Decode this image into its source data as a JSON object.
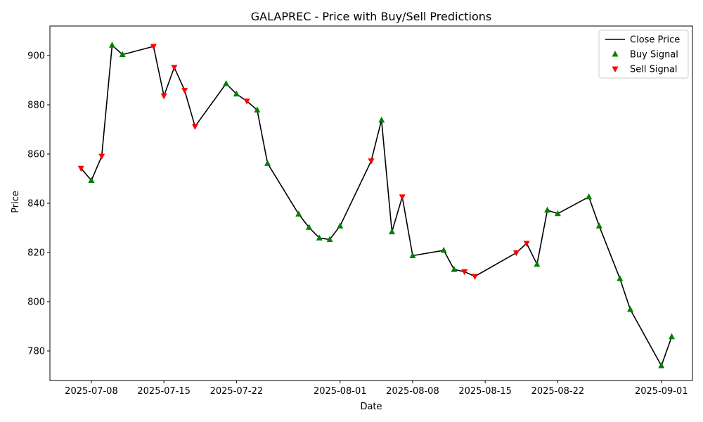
{
  "chart_data": {
    "type": "line",
    "title": "GALAPREC - Price with Buy/Sell Predictions",
    "xlabel": "Date",
    "ylabel": "Price",
    "x_ticks": [
      "2025-07-08",
      "2025-07-15",
      "2025-07-22",
      "2025-08-01",
      "2025-08-08",
      "2025-08-15",
      "2025-08-22",
      "2025-09-01"
    ],
    "y_ticks": [
      780,
      800,
      820,
      840,
      860,
      880,
      900
    ],
    "xlim": [
      "2025-07-04",
      "2025-09-04"
    ],
    "ylim": [
      768,
      912
    ],
    "grid": false,
    "legend_position": "top-right",
    "legend": [
      "Close Price",
      "Buy Signal",
      "Sell Signal"
    ],
    "colors": {
      "line": "#000000",
      "buy": "#008000",
      "sell": "#ff0000"
    },
    "series": [
      {
        "name": "Close Price",
        "points": [
          {
            "x": "2025-07-07",
            "y": 854.2,
            "signal": "sell"
          },
          {
            "x": "2025-07-08",
            "y": 849.3,
            "signal": "buy"
          },
          {
            "x": "2025-07-09",
            "y": 859.1,
            "signal": "sell"
          },
          {
            "x": "2025-07-10",
            "y": 904.2,
            "signal": "buy"
          },
          {
            "x": "2025-07-11",
            "y": 900.4,
            "signal": "buy"
          },
          {
            "x": "2025-07-14",
            "y": 903.7,
            "signal": "sell"
          },
          {
            "x": "2025-07-15",
            "y": 883.6,
            "signal": "sell"
          },
          {
            "x": "2025-07-16",
            "y": 895.2,
            "signal": "sell"
          },
          {
            "x": "2025-07-17",
            "y": 885.9,
            "signal": "sell"
          },
          {
            "x": "2025-07-18",
            "y": 871.2,
            "signal": "sell"
          },
          {
            "x": "2025-07-21",
            "y": 888.6,
            "signal": "buy"
          },
          {
            "x": "2025-07-22",
            "y": 884.4,
            "signal": "buy"
          },
          {
            "x": "2025-07-23",
            "y": 881.5,
            "signal": "sell"
          },
          {
            "x": "2025-07-24",
            "y": 877.9,
            "signal": "buy"
          },
          {
            "x": "2025-07-25",
            "y": 856.2,
            "signal": "buy"
          },
          {
            "x": "2025-07-28",
            "y": 835.6,
            "signal": "buy"
          },
          {
            "x": "2025-07-29",
            "y": 830.2,
            "signal": "buy"
          },
          {
            "x": "2025-07-30",
            "y": 825.9,
            "signal": "buy"
          },
          {
            "x": "2025-07-31",
            "y": 825.3,
            "signal": "buy"
          },
          {
            "x": "2025-08-01",
            "y": 830.8,
            "signal": "buy"
          },
          {
            "x": "2025-08-04",
            "y": 857.2,
            "signal": "sell"
          },
          {
            "x": "2025-08-05",
            "y": 873.8,
            "signal": "buy"
          },
          {
            "x": "2025-08-06",
            "y": 828.4,
            "signal": "buy"
          },
          {
            "x": "2025-08-07",
            "y": 842.6,
            "signal": "sell"
          },
          {
            "x": "2025-08-08",
            "y": 818.7,
            "signal": "buy"
          },
          {
            "x": "2025-08-11",
            "y": 820.9,
            "signal": "buy"
          },
          {
            "x": "2025-08-12",
            "y": 813.1,
            "signal": "buy"
          },
          {
            "x": "2025-08-13",
            "y": 812.2,
            "signal": "sell"
          },
          {
            "x": "2025-08-14",
            "y": 810.3,
            "signal": "sell"
          },
          {
            "x": "2025-08-18",
            "y": 819.9,
            "signal": "sell"
          },
          {
            "x": "2025-08-19",
            "y": 823.7,
            "signal": "sell"
          },
          {
            "x": "2025-08-20",
            "y": 815.2,
            "signal": "buy"
          },
          {
            "x": "2025-08-21",
            "y": 837.2,
            "signal": "buy"
          },
          {
            "x": "2025-08-22",
            "y": 835.8,
            "signal": "buy"
          },
          {
            "x": "2025-08-25",
            "y": 842.6,
            "signal": "buy"
          },
          {
            "x": "2025-08-26",
            "y": 830.8,
            "signal": "buy"
          },
          {
            "x": "2025-08-28",
            "y": 809.4,
            "signal": "buy"
          },
          {
            "x": "2025-08-29",
            "y": 796.9,
            "signal": "buy"
          },
          {
            "x": "2025-09-01",
            "y": 774.0,
            "signal": "buy"
          },
          {
            "x": "2025-09-02",
            "y": 785.8,
            "signal": "buy"
          }
        ]
      }
    ]
  }
}
